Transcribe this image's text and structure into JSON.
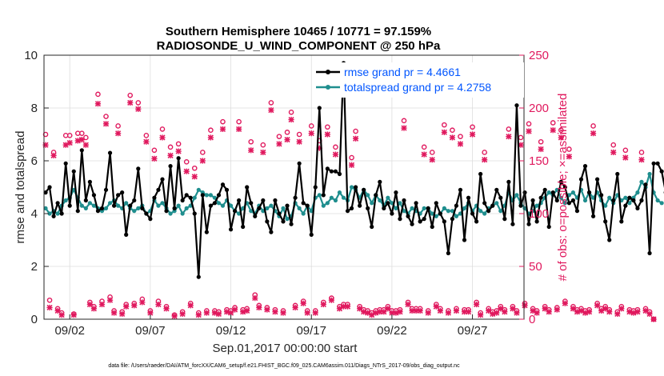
{
  "chart_data": {
    "type": "line",
    "title": "Southern Hemisphere 10465 / 10771 = 97.159%",
    "subtitle": "RADIOSONDE_U_WIND_COMPONENT @ 250 hPa",
    "xlabel": "Sep.01,2017 00:00:00 start",
    "ylabel": "rmse and totalspread",
    "ylabel_right": "# of obs: o=possible; ×=assimilated",
    "xlim": [
      0.4,
      30.2
    ],
    "ylim": [
      0,
      10
    ],
    "ylim_right": [
      0,
      250
    ],
    "x_ticks": [
      2,
      7,
      12,
      17,
      22,
      27
    ],
    "x_tick_labels": [
      "09/02",
      "09/07",
      "09/12",
      "09/17",
      "09/22",
      "09/27"
    ],
    "y_ticks": [
      "0",
      "2",
      "4",
      "6",
      "8",
      "10"
    ],
    "y_ticks_right": [
      "0",
      "50",
      "100",
      "150",
      "200",
      "250"
    ],
    "grid": true,
    "legend_position": "top-right",
    "footnote": "data file: /Users/raeder/DAI/ATM_forcXX/CAM6_setup/f.e21.FHIST_BGC.f09_025.CAM6assim.011/Diags_NTrS_2017-09/obs_diag_output.nc",
    "time_step_days": 0.25,
    "time_start_day": 0.5,
    "series": [
      {
        "name": "rmse grand pr = 4.4661",
        "color": "#000000",
        "axis": "left",
        "values": [
          4.8,
          5.0,
          3.9,
          4.4,
          4.0,
          5.9,
          4.3,
          5.6,
          4.1,
          6.4,
          4.5,
          5.2,
          4.7,
          4.1,
          4.2,
          4.9,
          6.3,
          4.3,
          4.7,
          4.8,
          3.2,
          4.3,
          4.5,
          5.7,
          4.2,
          4.0,
          3.8,
          4.6,
          4.9,
          5.3,
          4.1,
          5.8,
          4.2,
          6.1,
          4.5,
          4.7,
          4.6,
          4.0,
          1.6,
          4.7,
          3.3,
          4.3,
          4.4,
          4.7,
          5.1,
          4.9,
          3.4,
          4.1,
          4.5,
          3.5,
          5.0,
          4.4,
          3.9,
          4.2,
          4.5,
          3.7,
          3.3,
          4.5,
          4.0,
          3.7,
          4.3,
          3.6,
          4.6,
          5.9,
          4.4,
          4.3,
          3.2,
          5.0,
          8.0,
          4.7,
          5.7,
          5.6,
          5.6,
          5.5,
          9.7,
          4.1,
          4.2,
          5.0,
          4.3,
          4.9,
          4.2,
          3.5,
          4.7,
          5.2,
          4.2,
          4.4,
          4.0,
          4.8,
          3.8,
          4.5,
          3.9,
          3.6,
          4.4,
          3.7,
          3.8,
          4.2,
          3.5,
          4.4,
          4.0,
          3.7,
          2.5,
          3.8,
          4.3,
          4.9,
          3.0,
          4.6,
          4.0,
          3.7,
          5.5,
          4.4,
          4.1,
          4.3,
          4.9,
          4.6,
          3.8,
          5.2,
          3.6,
          8.1,
          4.3,
          4.8,
          3.6,
          4.5,
          3.7,
          4.6,
          4.9,
          3.5,
          4.8,
          4.5,
          5.2,
          5.0,
          4.4,
          4.5,
          4.1,
          5.3,
          5.8,
          4.8,
          3.9,
          5.3,
          4.7,
          3.7,
          3.0,
          4.5,
          5.5,
          3.7,
          4.3,
          4.6,
          4.5,
          4.2,
          4.5,
          5.1,
          2.5,
          5.9,
          5.9,
          5.6,
          4.8,
          2.6
        ]
      },
      {
        "name": "totalspread grand pr = 4.2758",
        "color": "#1f8e8e",
        "axis": "left",
        "values": [
          4.2,
          4.0,
          4.1,
          4.0,
          4.3,
          4.5,
          4.6,
          4.9,
          4.6,
          4.3,
          4.2,
          4.4,
          4.3,
          4.2,
          4.1,
          4.2,
          4.4,
          4.5,
          4.3,
          4.2,
          4.4,
          4.2,
          4.1,
          4.2,
          4.3,
          4.0,
          4.1,
          4.5,
          4.3,
          4.4,
          4.2,
          4.0,
          4.1,
          4.3,
          4.0,
          4.2,
          4.3,
          4.6,
          4.9,
          4.8,
          4.7,
          4.7,
          4.6,
          4.4,
          4.3,
          4.5,
          4.3,
          4.1,
          4.0,
          4.2,
          4.4,
          4.1,
          4.0,
          4.3,
          4.1,
          4.2,
          4.3,
          4.1,
          3.9,
          4.2,
          3.8,
          3.9,
          4.4,
          4.2,
          4.0,
          4.3,
          4.1,
          4.6,
          4.7,
          4.3,
          4.4,
          4.6,
          4.5,
          4.8,
          4.6,
          4.5,
          5.0,
          4.9,
          4.6,
          4.9,
          4.7,
          4.4,
          4.7,
          4.5,
          4.3,
          4.6,
          4.4,
          4.2,
          4.4,
          4.1,
          4.0,
          4.2,
          4.1,
          4.0,
          4.2,
          4.2,
          4.0,
          3.9,
          4.0,
          4.2,
          4.1,
          4.1,
          3.9,
          4.0,
          4.2,
          4.4,
          4.1,
          4.3,
          4.1,
          4.0,
          4.2,
          4.3,
          4.4,
          4.1,
          4.3,
          4.8,
          4.5,
          4.7,
          4.4,
          4.2,
          4.0,
          4.1,
          4.3,
          4.4,
          4.6,
          4.8,
          4.7,
          4.9,
          4.6,
          4.4,
          4.7,
          4.8,
          4.6,
          4.9,
          4.5,
          4.8,
          4.6,
          4.8,
          4.5,
          4.3,
          4.6,
          4.4,
          4.7,
          4.5,
          4.6,
          4.4,
          4.6,
          4.8,
          5.2,
          5.0,
          5.5,
          4.8,
          4.5,
          4.4
        ]
      },
      {
        "name": "possible",
        "color": "#e0195e",
        "axis": "right",
        "marker": "o",
        "values": [
          175,
          18,
          158,
          10,
          6,
          174,
          174,
          5,
          176,
          176,
          172,
          16,
          12,
          213,
          17,
          192,
          21,
          8,
          183,
          7,
          14,
          212,
          15,
          205,
          19,
          174,
          8,
          160,
          17,
          180,
          12,
          163,
          4,
          166,
          7,
          149,
          15,
          143,
          6,
          158,
          8,
          179,
          8,
          7,
          187,
          9,
          8,
          11,
          187,
          9,
          10,
          168,
          23,
          13,
          165,
          11,
          205,
          9,
          173,
          8,
          177,
          196,
          13,
          175,
          17,
          8,
          183,
          8,
          169,
          16,
          182,
          20,
          163,
          12,
          14,
          14,
          153,
          178,
          12,
          9,
          8,
          6,
          8,
          9,
          9,
          12,
          8,
          8,
          9,
          188,
          16,
          10,
          10,
          10,
          163,
          8,
          158,
          14,
          10,
          184,
          8,
          179,
          10,
          173,
          9,
          9,
          182,
          16,
          6,
          158,
          10,
          7,
          8,
          12,
          9,
          180,
          12,
          8,
          172,
          15,
          185,
          10,
          8,
          168,
          12,
          9,
          186,
          11,
          179,
          17,
          161,
          12,
          9,
          10,
          8,
          9,
          183,
          15,
          10,
          12,
          9,
          165,
          7,
          12,
          160,
          9,
          8,
          9,
          158,
          10,
          7,
          0
        ]
      },
      {
        "name": "assimilated",
        "color": "#e0195e",
        "axis": "right",
        "marker": "x",
        "values": [
          165,
          11,
          155,
          8,
          4,
          165,
          167,
          4,
          169,
          170,
          165,
          14,
          10,
          204,
          14,
          185,
          18,
          6,
          176,
          5,
          12,
          205,
          13,
          199,
          16,
          168,
          6,
          152,
          14,
          172,
          10,
          155,
          3,
          159,
          5,
          140,
          13,
          135,
          4,
          150,
          6,
          172,
          6,
          5,
          180,
          7,
          6,
          9,
          180,
          7,
          8,
          160,
          20,
          11,
          158,
          9,
          198,
          7,
          166,
          6,
          170,
          189,
          11,
          168,
          15,
          6,
          176,
          6,
          162,
          14,
          175,
          18,
          156,
          10,
          12,
          12,
          146,
          171,
          10,
          7,
          6,
          4,
          6,
          7,
          7,
          10,
          6,
          6,
          7,
          181,
          14,
          8,
          8,
          8,
          156,
          6,
          151,
          12,
          8,
          177,
          6,
          172,
          8,
          166,
          7,
          7,
          175,
          14,
          4,
          151,
          8,
          5,
          6,
          10,
          7,
          173,
          10,
          6,
          165,
          13,
          178,
          8,
          6,
          161,
          10,
          7,
          179,
          9,
          172,
          15,
          154,
          10,
          7,
          8,
          6,
          7,
          176,
          13,
          8,
          10,
          7,
          158,
          5,
          10,
          153,
          7,
          6,
          7,
          151,
          8,
          5,
          0
        ]
      }
    ]
  }
}
